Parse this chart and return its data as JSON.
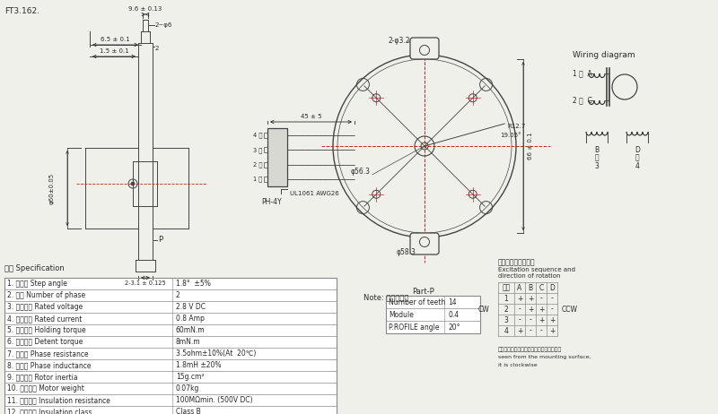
{
  "bg_color": "#f0f0eb",
  "title": "FT3.162.",
  "spec_title": "规格 Specification",
  "spec_rows": [
    [
      "1. 步距角 Step angle",
      "1.8°  ±5%"
    ],
    [
      "2. 相数 Number of phase",
      "2"
    ],
    [
      "3. 额定电压 Rated voltage",
      "2.8 V DC"
    ],
    [
      "4. 额定电流 Rated current",
      "0.8 Amp"
    ],
    [
      "5. 保持力矩 Holding torque",
      "60mN.m"
    ],
    [
      "6. 定位力矩 Detent torque",
      "8mN.m"
    ],
    [
      "7. 相电阱 Phase resistance",
      "3.5ohm±10%(At  20℃)"
    ],
    [
      "8. 相电感 Phase inductance",
      "1.8mH ±20%"
    ],
    [
      "9. 转子惯量 Rotor inertia",
      "15g.cm²"
    ],
    [
      "10. 电机重量 Motor weight",
      "0.07kg"
    ],
    [
      "11. 绶缘电阱 Insulation resistance",
      "100MΩmin. (500V DC)"
    ],
    [
      "12. 绶缘等级 Insulation class",
      "Class B"
    ]
  ],
  "note_text": "Note: 电机不打标",
  "wiring_title": "Wiring diagram",
  "part_p_title": "Part-P",
  "part_p_rows": [
    [
      "Number of teeth",
      "14"
    ],
    [
      "Module",
      "0.4"
    ],
    [
      "P.ROFILE angle",
      "20°"
    ]
  ],
  "excitation_title": "逐磁顺序和旋转方向",
  "excitation_subtitle": "Excitation sequence and\ndirection of rotation",
  "cw_label": "CW",
  "ccw_label": "CCW",
  "excitation_note1": "从安装面方向看过去，顺时针方向为顺时针",
  "excitation_note2": "seen from the mounting surface,",
  "excitation_note3": "it is clockwise",
  "esteps": [
    [
      "+",
      "+",
      "-",
      "-"
    ],
    [
      "-",
      "+",
      "+",
      "-"
    ],
    [
      "-",
      "-",
      "+",
      "+"
    ],
    [
      "+",
      "-",
      "-",
      "+"
    ]
  ],
  "text_color": "#2a2a2a",
  "line_color": "#444444",
  "red_color": "#cc2222",
  "table_border": "#888888",
  "dim1": "9.6 ± 0.13",
  "dim2": "6.5 ± 0.1",
  "dim3": "1.5 ± 0.1",
  "dim4": "2~φ6",
  "dim5": "2",
  "dim6": "φ60±0.05",
  "dim7": "P",
  "dim8": "2-3.1 ± 0.125",
  "dim9": "45 ± 5",
  "dim10": "φ56.3",
  "dim11": "R12.7",
  "dim12": "66 ± 0.1",
  "dim13": "2-φ3.2",
  "dim14": "φ58.3",
  "dim15": "19.05°",
  "wire_label": "UL1061 AWG26",
  "connector": "PH-4Y"
}
